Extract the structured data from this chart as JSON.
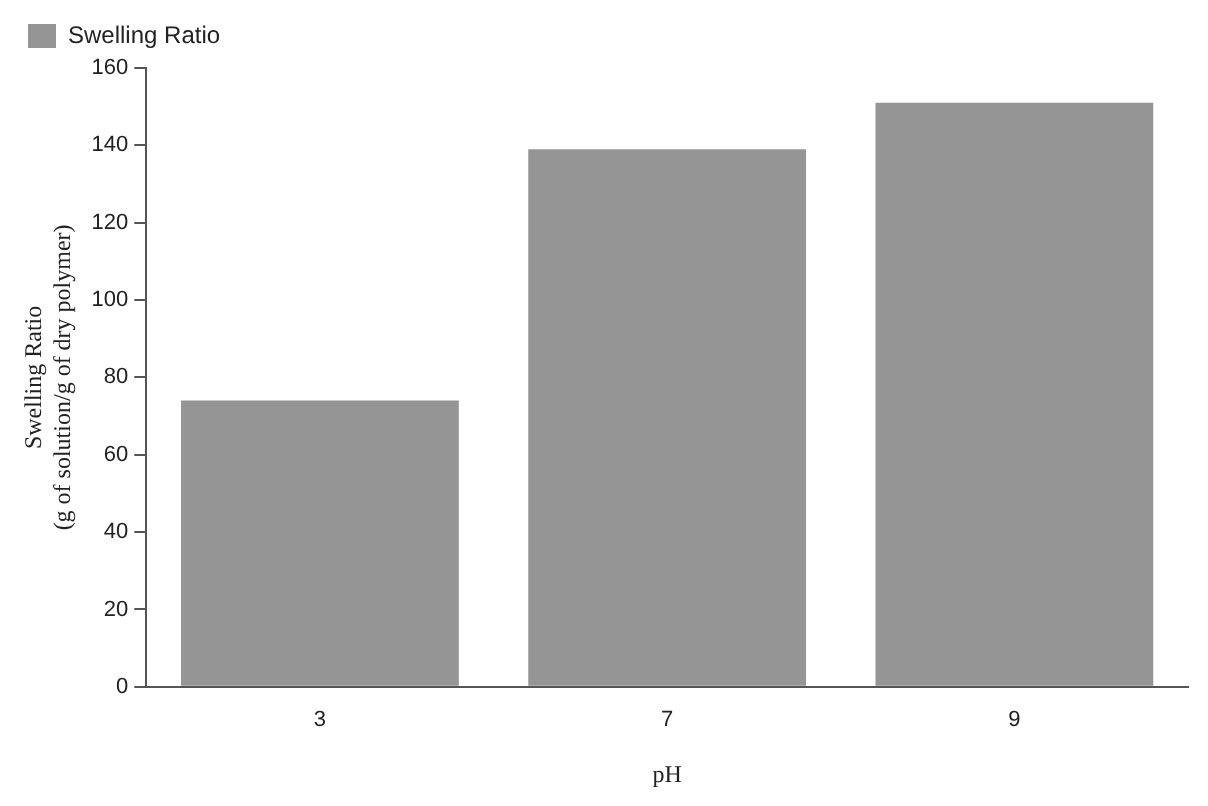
{
  "chart_data": {
    "type": "bar",
    "xlabel": "pH",
    "ylabel": "Swelling Ratio\n(g of solution/g of dry polymer)",
    "categories": [
      "3",
      "7",
      "9"
    ],
    "series": [
      {
        "name": "Swelling Ratio",
        "color": "#959595",
        "values": [
          74,
          139,
          151
        ]
      }
    ],
    "ylim": [
      0,
      160
    ],
    "yticks": [
      0,
      20,
      40,
      60,
      80,
      100,
      120,
      140,
      160
    ],
    "grid": false,
    "legend": "top left"
  }
}
